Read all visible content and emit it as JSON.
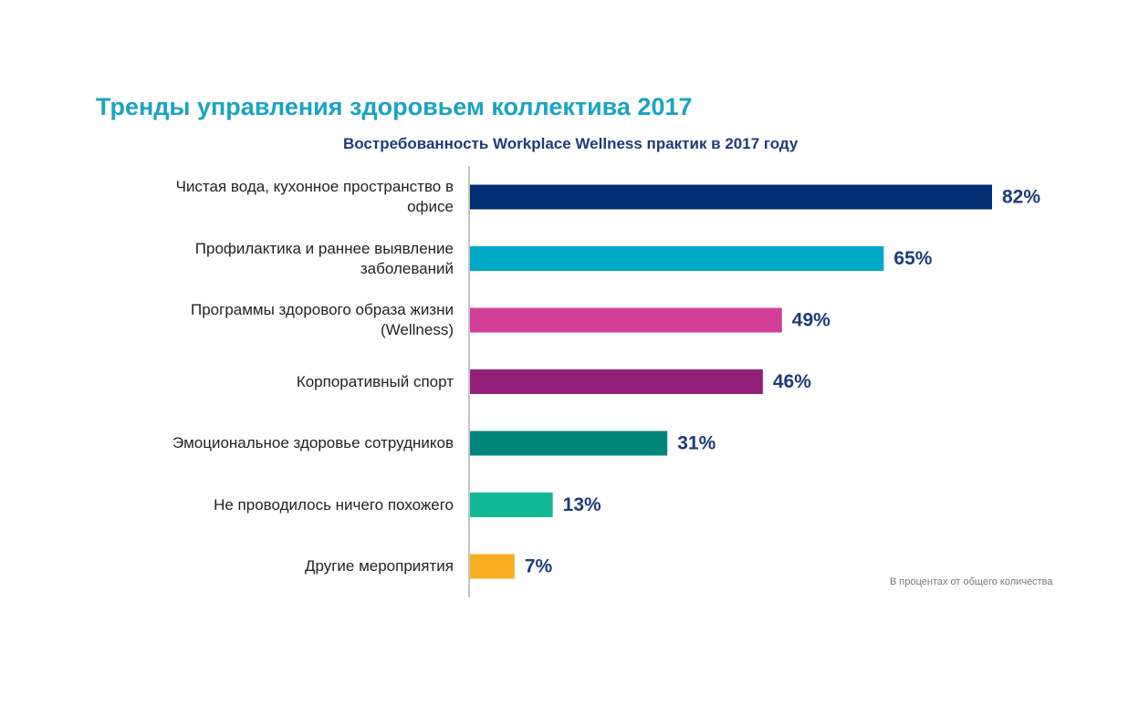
{
  "chart_data": {
    "type": "bar",
    "orientation": "horizontal",
    "title": "Тренды управления здоровьем коллектива 2017",
    "subtitle": "Востребованность Workplace Wellness практик в 2017 году",
    "categories": [
      "Чистая вода, кухонное пространство в офисе",
      "Профилактика и раннее выявление заболеваний",
      "Программы здорового образа жизни (Wellness)",
      "Корпоративный спорт",
      "Эмоциональное здоровье сотрудников",
      "Не проводилось ничего похожего",
      "Другие мероприятия"
    ],
    "values": [
      82,
      65,
      49,
      46,
      31,
      13,
      7
    ],
    "value_labels": [
      "82%",
      "65%",
      "49%",
      "46%",
      "31%",
      "13%",
      "7%"
    ],
    "colors": [
      "#002d72",
      "#00a8c8",
      "#d23f97",
      "#93217a",
      "#00857a",
      "#12b795",
      "#f8ae21"
    ],
    "note": "В процентах от общего количества"
  }
}
